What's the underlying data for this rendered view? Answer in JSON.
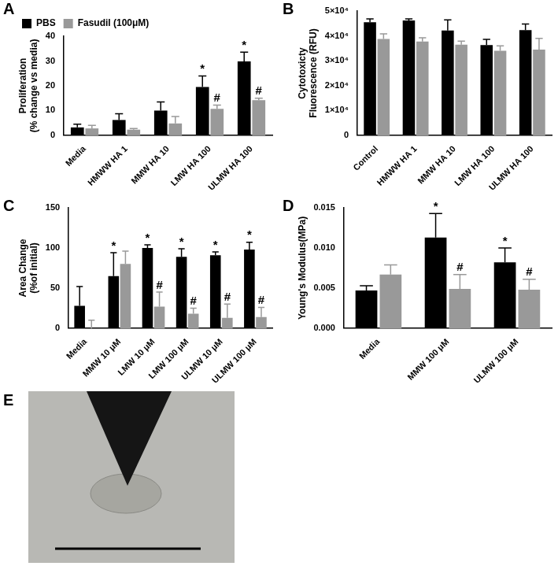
{
  "chart_data": [
    {
      "type": "bar",
      "title": "A",
      "ylabel": [
        "Proliferation",
        "(% change vs media)"
      ],
      "categories": [
        "Media",
        "HMWW HA 1",
        "MMW HA 10",
        "LMW HA 100",
        "ULMW HA 100"
      ],
      "series": [
        {
          "name": "PBS",
          "color": "#000000",
          "values": [
            3.2,
            6.2,
            10,
            19.5,
            29.8
          ],
          "errors": [
            1.3,
            2.5,
            3.5,
            4.5,
            3.8
          ],
          "annotations": [
            null,
            null,
            null,
            "*",
            "*"
          ]
        },
        {
          "name": "Fasudil (100μM)",
          "color": "#999999",
          "values": [
            2.8,
            2.3,
            4.8,
            10.7,
            14.2
          ],
          "errors": [
            1.2,
            0.5,
            2.8,
            1.5,
            0.8
          ],
          "annotations": [
            null,
            null,
            null,
            "#",
            "#"
          ]
        }
      ],
      "ylim": [
        0,
        40
      ],
      "yticks": [
        0,
        10,
        20,
        30,
        40
      ],
      "grid": false,
      "legend": "top-left"
    },
    {
      "type": "bar",
      "title": "B",
      "ylabel": [
        "Cytotoxicty",
        "Fluorescence (RFU)"
      ],
      "categories": [
        "Control",
        "HMWW HA 1",
        "MMW HA 10",
        "LMW HA 100",
        "ULMW HA 100"
      ],
      "series": [
        {
          "name": "PBS",
          "color": "#000000",
          "values": [
            45500,
            46200,
            42200,
            36300,
            42300
          ],
          "errors": [
            1300,
            600,
            4200,
            2300,
            2500
          ]
        },
        {
          "name": "Fasudil (100μM)",
          "color": "#999999",
          "values": [
            38800,
            37700,
            36500,
            34000,
            34500
          ],
          "errors": [
            2000,
            1500,
            1400,
            2000,
            4500
          ]
        }
      ],
      "ylim": [
        0,
        50000
      ],
      "yticks": [
        0,
        {
          "value": 10000,
          "label": "1×10⁴"
        },
        {
          "value": 20000,
          "label": "2×10⁴"
        },
        {
          "value": 30000,
          "label": "3×10⁴"
        },
        {
          "value": 40000,
          "label": "4×10⁴"
        },
        {
          "value": 50000,
          "label": "5×10⁴"
        }
      ],
      "grid": false
    },
    {
      "type": "bar",
      "title": "C",
      "ylabel": [
        "Area Change",
        "(%of initial)"
      ],
      "categories": [
        "Media",
        "MMW 10 μM",
        "LMW 10 μM",
        "LMW 100 μM",
        "ULMW 10 μM",
        "ULMW 100 μM"
      ],
      "series": [
        {
          "name": "PBS",
          "color": "#000000",
          "values": [
            28,
            65,
            100,
            89,
            91,
            98
          ],
          "errors": [
            24,
            29,
            4,
            10,
            4,
            9
          ],
          "annotations": [
            null,
            "*",
            "*",
            "*",
            "*",
            "*"
          ]
        },
        {
          "name": "Fasudil (100μM)",
          "color": "#999999",
          "values": [
            0,
            80,
            27,
            18,
            13,
            14
          ],
          "errors": [
            10,
            16,
            18,
            7,
            17,
            12
          ],
          "annotations": [
            null,
            null,
            "#",
            "#",
            "#",
            "#"
          ]
        }
      ],
      "ylim": [
        0,
        150
      ],
      "yticks": [
        0,
        50,
        100,
        150
      ],
      "grid": false
    },
    {
      "type": "bar",
      "title": "D",
      "ylabel": [
        "Young's Modulus(MPa)"
      ],
      "categories": [
        "Media",
        "MMW 100 μM",
        "ULMW 100 μM"
      ],
      "series": [
        {
          "name": "PBS",
          "color": "#000000",
          "values": [
            0.0047,
            0.0113,
            0.0082
          ],
          "errors": [
            0.0006,
            0.003,
            0.0018
          ],
          "annotations": [
            null,
            "*",
            "*"
          ]
        },
        {
          "name": "Fasudil (100μM)",
          "color": "#999999",
          "values": [
            0.0067,
            0.0049,
            0.0048
          ],
          "errors": [
            0.0012,
            0.0018,
            0.0013
          ],
          "annotations": [
            null,
            "#",
            "#"
          ]
        }
      ],
      "ylim": [
        0,
        0.015
      ],
      "yticks": [
        {
          "value": 0,
          "label": "0.000"
        },
        {
          "value": 0.005,
          "label": "0.005"
        },
        {
          "value": 0.01,
          "label": "0.010"
        },
        {
          "value": 0.015,
          "label": "0.015"
        }
      ],
      "grid": false
    }
  ],
  "image_panel": {
    "title": "E"
  }
}
